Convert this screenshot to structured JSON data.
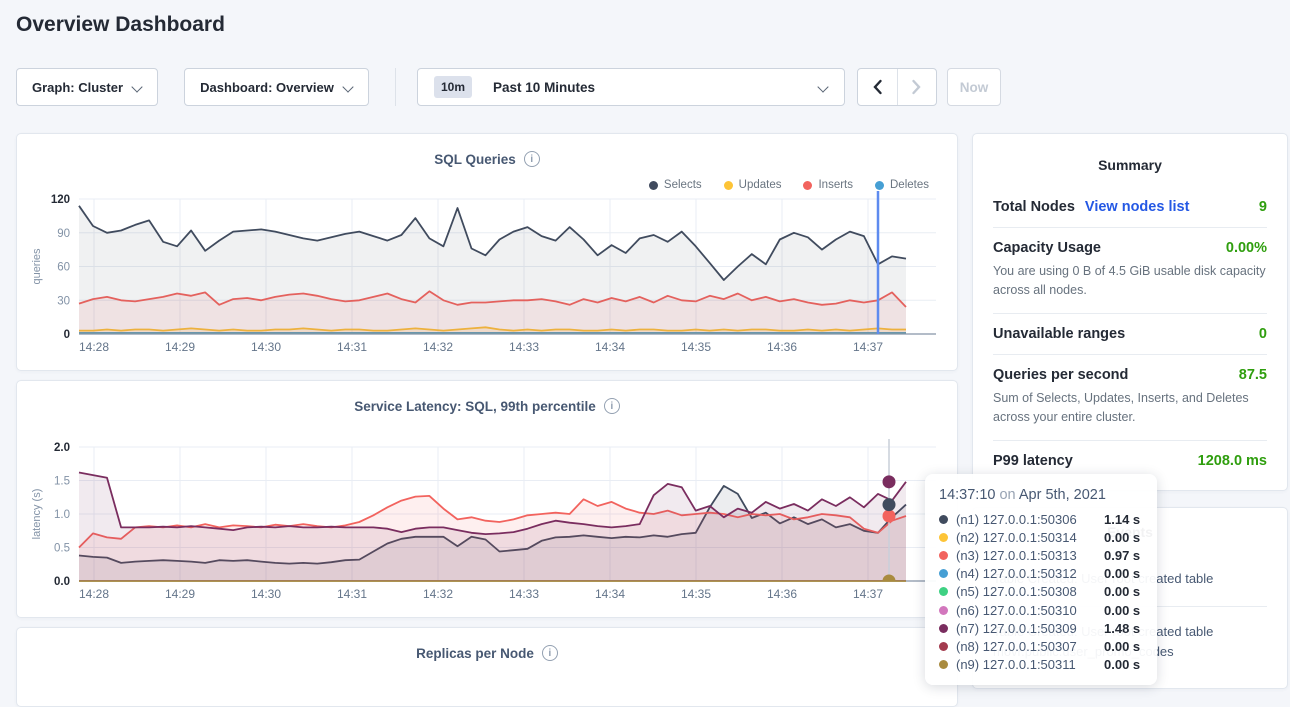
{
  "page": {
    "title": "Overview Dashboard"
  },
  "controls": {
    "graph": "Graph: Cluster",
    "dashboard": "Dashboard: Overview",
    "time_range_badge": "10m",
    "time_range_label": "Past 10 Minutes",
    "now": "Now"
  },
  "charts": {
    "sql": {
      "type": "line",
      "title": "SQL Queries",
      "ylabel": "queries",
      "ymax": 120,
      "yticks": [
        {
          "v": 0,
          "label": "0",
          "bold": true
        },
        {
          "v": 30,
          "label": "30",
          "bold": false
        },
        {
          "v": 60,
          "label": "60",
          "bold": false
        },
        {
          "v": 90,
          "label": "90",
          "bold": false
        },
        {
          "v": 120,
          "label": "120",
          "bold": true
        }
      ],
      "xticks": [
        "14:28",
        "14:29",
        "14:30",
        "14:31",
        "14:32",
        "14:33",
        "14:34",
        "14:35",
        "14:36",
        "14:37"
      ],
      "legend": [
        {
          "label": "Selects",
          "color": "#404b5e"
        },
        {
          "label": "Updates",
          "color": "#fdc437"
        },
        {
          "label": "Inserts",
          "color": "#f2635e"
        },
        {
          "label": "Deletes",
          "color": "#469fd4"
        }
      ],
      "series": [
        {
          "name": "Deletes",
          "color": "#469fd4",
          "fill": "rgba(70,159,212,0.10)",
          "values": [
            1,
            1
          ]
        },
        {
          "name": "Updates",
          "color": "#fdc437",
          "fill": "rgba(253,196,55,0.14)",
          "values": [
            3,
            3,
            4,
            3,
            4,
            4,
            3,
            4,
            5,
            4,
            3,
            4,
            3,
            3,
            4,
            4,
            5,
            4,
            3,
            4,
            4,
            3,
            3,
            4,
            5,
            4,
            3,
            4,
            5,
            6,
            4,
            3,
            4,
            3,
            4,
            4,
            3,
            3,
            4,
            3,
            4,
            4,
            3,
            3,
            4,
            3,
            4,
            3,
            4,
            4,
            3,
            3,
            4,
            3,
            4,
            3,
            4,
            5,
            4,
            4
          ]
        },
        {
          "name": "Inserts",
          "color": "#f2635e",
          "fill": "rgba(242,99,94,0.10)",
          "values": [
            27,
            31,
            33,
            30,
            29,
            31,
            33,
            36,
            34,
            37,
            26,
            31,
            32,
            30,
            33,
            35,
            36,
            34,
            31,
            29,
            30,
            33,
            36,
            31,
            28,
            38,
            30,
            26,
            28,
            28,
            29,
            30,
            30,
            31,
            29,
            26,
            31,
            28,
            32,
            29,
            33,
            28,
            34,
            30,
            29,
            34,
            31,
            36,
            30,
            33,
            29,
            31,
            28,
            26,
            27,
            30,
            28,
            30,
            37,
            24
          ]
        },
        {
          "name": "Selects",
          "color": "#404b5e",
          "fill": "rgba(64,75,94,0.08)",
          "values": [
            114,
            96,
            90,
            92,
            97,
            101,
            82,
            78,
            92,
            74,
            83,
            91,
            92,
            93,
            91,
            88,
            85,
            83,
            86,
            89,
            91,
            87,
            83,
            88,
            103,
            85,
            78,
            112,
            76,
            70,
            84,
            91,
            95,
            87,
            83,
            95,
            84,
            70,
            79,
            72,
            85,
            88,
            82,
            91,
            78,
            63,
            48,
            60,
            71,
            62,
            84,
            90,
            86,
            75,
            84,
            91,
            87,
            62,
            69,
            67
          ]
        }
      ],
      "crosshair": {
        "x": 861,
        "color": "#5e8bef",
        "width": 2.5
      }
    },
    "latency": {
      "type": "line",
      "title": "Service Latency: SQL, 99th percentile",
      "ylabel": "latency (s)",
      "ymax": 2.0,
      "yticks": [
        {
          "v": 0,
          "label": "0.0",
          "bold": true
        },
        {
          "v": 0.5,
          "label": "0.5",
          "bold": false
        },
        {
          "v": 1.0,
          "label": "1.0",
          "bold": false
        },
        {
          "v": 1.5,
          "label": "1.5",
          "bold": false
        },
        {
          "v": 2.0,
          "label": "2.0",
          "bold": true
        }
      ],
      "xticks": [
        "14:28",
        "14:29",
        "14:30",
        "14:31",
        "14:32",
        "14:33",
        "14:34",
        "14:35",
        "14:36",
        "14:37"
      ],
      "series": [
        {
          "name": "n9",
          "color": "#a98b3f",
          "fill": "rgba(169,139,63,0.08)",
          "values": [
            0,
            0
          ]
        },
        {
          "name": "n1",
          "color": "#404b5e",
          "fill": "rgba(64,75,94,0.10)",
          "values": [
            0.38,
            0.36,
            0.35,
            0.27,
            0.29,
            0.3,
            0.31,
            0.3,
            0.29,
            0.27,
            0.31,
            0.3,
            0.31,
            0.29,
            0.27,
            0.26,
            0.27,
            0.26,
            0.28,
            0.31,
            0.32,
            0.44,
            0.56,
            0.63,
            0.66,
            0.66,
            0.66,
            0.52,
            0.66,
            0.62,
            0.44,
            0.46,
            0.48,
            0.6,
            0.65,
            0.66,
            0.68,
            0.66,
            0.64,
            0.66,
            0.65,
            0.68,
            0.66,
            0.7,
            0.72,
            1.1,
            1.42,
            1.3,
            0.94,
            1.02,
            0.86,
            0.95,
            0.85,
            0.92,
            0.8,
            0.85,
            0.75,
            0.72,
            0.95,
            1.14
          ]
        },
        {
          "name": "n3",
          "color": "#f2635e",
          "fill": "rgba(242,99,94,0.10)",
          "values": [
            0.5,
            0.71,
            0.65,
            0.63,
            0.8,
            0.82,
            0.8,
            0.83,
            0.8,
            0.85,
            0.8,
            0.83,
            0.82,
            0.8,
            0.84,
            0.82,
            0.85,
            0.82,
            0.8,
            0.83,
            0.88,
            0.98,
            1.1,
            1.2,
            1.26,
            1.27,
            1.08,
            0.92,
            0.95,
            0.9,
            0.88,
            0.92,
            0.98,
            1.0,
            1.02,
            1.0,
            1.22,
            1.12,
            1.18,
            1.08,
            1.02,
            1.0,
            1.05,
            0.98,
            1.0,
            1.02,
            1.0,
            0.95,
            1.0,
            0.98,
            1.0,
            0.92,
            0.95,
            1.0,
            0.98,
            0.95,
            0.78,
            0.72,
            0.9,
            0.97
          ]
        },
        {
          "name": "n7",
          "color": "#7a2d5f",
          "fill": "rgba(122,45,95,0.10)",
          "values": [
            1.62,
            1.58,
            1.54,
            0.8,
            0.8,
            0.8,
            0.81,
            0.8,
            0.82,
            0.8,
            0.78,
            0.76,
            0.8,
            0.81,
            0.8,
            0.82,
            0.8,
            0.8,
            0.81,
            0.8,
            0.8,
            0.8,
            0.78,
            0.73,
            0.78,
            0.8,
            0.8,
            0.76,
            0.72,
            0.7,
            0.71,
            0.73,
            0.78,
            0.85,
            0.9,
            0.87,
            0.85,
            0.82,
            0.8,
            0.82,
            0.85,
            1.28,
            1.45,
            1.4,
            1.05,
            1.12,
            0.95,
            1.08,
            1.02,
            1.18,
            1.08,
            1.15,
            1.05,
            1.22,
            1.12,
            1.25,
            1.1,
            1.3,
            1.2,
            1.48
          ]
        }
      ],
      "crosshair": {
        "x": 872,
        "color": "#c9cfd9",
        "width": 1.5
      },
      "dots": [
        {
          "v": 0.0,
          "color": "#a98b3f"
        },
        {
          "v": 0.97,
          "color": "#f2635e"
        },
        {
          "v": 1.14,
          "color": "#404b5e"
        },
        {
          "v": 1.48,
          "color": "#7a2d5f"
        }
      ]
    },
    "replicas": {
      "title": "Replicas per Node"
    }
  },
  "summary": {
    "title": "Summary",
    "total_nodes": {
      "label": "Total Nodes",
      "link": "View nodes list",
      "value": "9"
    },
    "capacity": {
      "label": "Capacity Usage",
      "value": "0.00%",
      "desc": "You are using 0 B of 4.5 GiB usable disk capacity across all nodes."
    },
    "unavailable": {
      "label": "Unavailable ranges",
      "value": "0"
    },
    "qps": {
      "label": "Queries per second",
      "value": "87.5",
      "desc": "Sum of Selects, Updates, Inserts, and Deletes across your entire cluster."
    },
    "p99": {
      "label": "P99 latency",
      "value": "1208.0 ms"
    }
  },
  "events": {
    "title": "Events",
    "items": [
      {
        "text": "Table Created: User root created table"
      },
      {
        "text": "Table Created: User root created table movr.public.user_promo_codes"
      }
    ]
  },
  "tooltip": {
    "time": "14:37:10",
    "sep": "on",
    "date": "Apr 5th, 2021",
    "rows": [
      {
        "color": "#404b5e",
        "label": "(n1) 127.0.0.1:50306",
        "value": "1.14 s"
      },
      {
        "color": "#fdc437",
        "label": "(n2) 127.0.0.1:50314",
        "value": "0.00 s"
      },
      {
        "color": "#f2635e",
        "label": "(n3) 127.0.0.1:50313",
        "value": "0.97 s"
      },
      {
        "color": "#469fd4",
        "label": "(n4) 127.0.0.1:50312",
        "value": "0.00 s"
      },
      {
        "color": "#3fd183",
        "label": "(n5) 127.0.0.1:50308",
        "value": "0.00 s"
      },
      {
        "color": "#d277bd",
        "label": "(n6) 127.0.0.1:50310",
        "value": "0.00 s"
      },
      {
        "color": "#7a2d5f",
        "label": "(n7) 127.0.0.1:50309",
        "value": "1.48 s"
      },
      {
        "color": "#a33b4e",
        "label": "(n8) 127.0.0.1:50307",
        "value": "0.00 s"
      },
      {
        "color": "#a98b3f",
        "label": "(n9) 127.0.0.1:50311",
        "value": "0.00 s"
      }
    ]
  },
  "colors": {
    "accent_green": "#2f9e0e",
    "link_blue": "#2458e4",
    "crosshair_blue": "#5e8bef",
    "background": "#f4f6fa"
  }
}
